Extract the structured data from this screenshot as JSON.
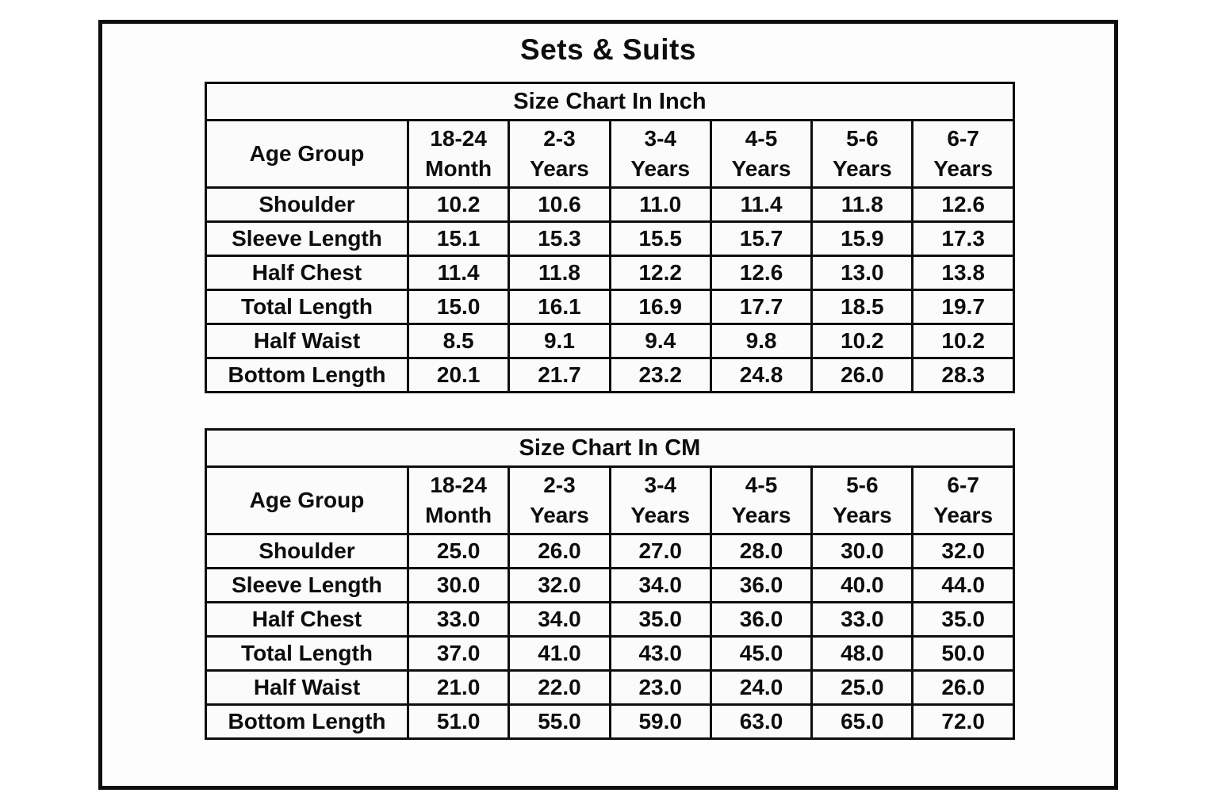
{
  "title": "Sets & Suits",
  "colors": {
    "text": "#0d0d0d",
    "border": "#0e0e0e",
    "cell_background": "#fbfbfb",
    "page_background": "#ffffff"
  },
  "tables": [
    {
      "title": "Size Chart In Inch",
      "corner_label": "Age Group",
      "columns": [
        {
          "line1": "18-24",
          "line2": "Month"
        },
        {
          "line1": "2-3",
          "line2": "Years"
        },
        {
          "line1": "3-4",
          "line2": "Years"
        },
        {
          "line1": "4-5",
          "line2": "Years"
        },
        {
          "line1": "5-6",
          "line2": "Years"
        },
        {
          "line1": "6-7",
          "line2": "Years"
        }
      ],
      "rows": [
        {
          "label": "Shoulder",
          "values": [
            "10.2",
            "10.6",
            "11.0",
            "11.4",
            "11.8",
            "12.6"
          ]
        },
        {
          "label": "Sleeve Length",
          "values": [
            "15.1",
            "15.3",
            "15.5",
            "15.7",
            "15.9",
            "17.3"
          ]
        },
        {
          "label": "Half Chest",
          "values": [
            "11.4",
            "11.8",
            "12.2",
            "12.6",
            "13.0",
            "13.8"
          ]
        },
        {
          "label": "Total Length",
          "values": [
            "15.0",
            "16.1",
            "16.9",
            "17.7",
            "18.5",
            "19.7"
          ]
        },
        {
          "label": "Half Waist",
          "values": [
            "8.5",
            "9.1",
            "9.4",
            "9.8",
            "10.2",
            "10.2"
          ]
        },
        {
          "label": "Bottom Length",
          "values": [
            "20.1",
            "21.7",
            "23.2",
            "24.8",
            "26.0",
            "28.3"
          ]
        }
      ]
    },
    {
      "title": "Size Chart In CM",
      "corner_label": "Age Group",
      "columns": [
        {
          "line1": "18-24",
          "line2": "Month"
        },
        {
          "line1": "2-3",
          "line2": "Years"
        },
        {
          "line1": "3-4",
          "line2": "Years"
        },
        {
          "line1": "4-5",
          "line2": "Years"
        },
        {
          "line1": "5-6",
          "line2": "Years"
        },
        {
          "line1": "6-7",
          "line2": "Years"
        }
      ],
      "rows": [
        {
          "label": "Shoulder",
          "values": [
            "25.0",
            "26.0",
            "27.0",
            "28.0",
            "30.0",
            "32.0"
          ]
        },
        {
          "label": "Sleeve Length",
          "values": [
            "30.0",
            "32.0",
            "34.0",
            "36.0",
            "40.0",
            "44.0"
          ]
        },
        {
          "label": "Half Chest",
          "values": [
            "33.0",
            "34.0",
            "35.0",
            "36.0",
            "33.0",
            "35.0"
          ]
        },
        {
          "label": "Total Length",
          "values": [
            "37.0",
            "41.0",
            "43.0",
            "45.0",
            "48.0",
            "50.0"
          ]
        },
        {
          "label": "Half Waist",
          "values": [
            "21.0",
            "22.0",
            "23.0",
            "24.0",
            "25.0",
            "26.0"
          ]
        },
        {
          "label": "Bottom Length",
          "values": [
            "51.0",
            "55.0",
            "59.0",
            "63.0",
            "65.0",
            "72.0"
          ]
        }
      ]
    }
  ]
}
